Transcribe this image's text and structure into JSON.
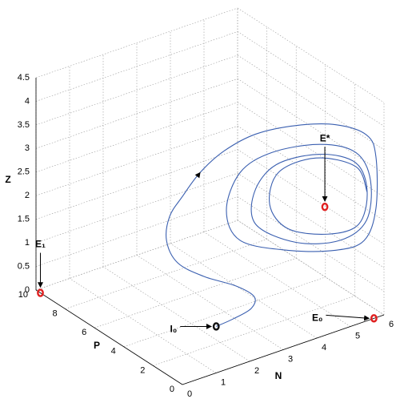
{
  "chart_data": {
    "type": "line3d",
    "xlabel": "N",
    "ylabel": "P",
    "zlabel": "Z",
    "xlim": [
      0,
      6
    ],
    "ylim": [
      0,
      10
    ],
    "zlim": [
      0,
      4.5
    ],
    "xticks": [
      0,
      1,
      2,
      3,
      4,
      5,
      6
    ],
    "yticks": [
      0,
      2,
      4,
      6,
      8,
      10
    ],
    "zticks": [
      0,
      0.5,
      1,
      1.5,
      2,
      2.5,
      3,
      3.5,
      4,
      4.5
    ],
    "grid": true,
    "series": [
      {
        "color": "#3a5fb0",
        "x": [
          2.4,
          2.74,
          3.09,
          3.01,
          2.47,
          1.51,
          0.73,
          0.4,
          0.49,
          0.87,
          1.4,
          2.11,
          2.84,
          3.82,
          4.7,
          5.61,
          5.89,
          5.89,
          5.54,
          4.7,
          3.27,
          1.85,
          1.44,
          1.85,
          2.8,
          4.23,
          5.3,
          5.73,
          5.61,
          4.82,
          3.51,
          2.32,
          2.27,
          2.92,
          4.23,
          5.3,
          5.63,
          5.37,
          4.46,
          3.27,
          2.73,
          2.99,
          4.11,
          5.3,
          5.63
        ],
        "y": [
          3.2,
          2.8,
          2.4,
          2,
          2,
          2,
          2,
          2,
          2,
          2,
          2,
          2,
          1.5,
          1,
          0.3,
          0.3,
          0.3,
          0.3,
          0.3,
          0.3,
          0.3,
          0.3,
          0.3,
          0.3,
          0.3,
          0.3,
          0.3,
          0.3,
          0.3,
          0.3,
          0.3,
          0.3,
          0.3,
          0.3,
          0.3,
          0.3,
          0.3,
          0.3,
          0.3,
          0.3,
          0.3,
          0.3,
          0.3,
          0.3,
          0.3
        ],
        "z": [
          0,
          0.16,
          0.37,
          0.72,
          1.08,
          1.52,
          2.0,
          2.55,
          3.04,
          3.37,
          3.75,
          4.03,
          4.31,
          4.35,
          4.29,
          3.85,
          3.32,
          2.22,
          1.63,
          1.63,
          1.98,
          2.54,
          3.28,
          3.98,
          4.17,
          3.99,
          3.55,
          2.85,
          2.04,
          1.81,
          2.09,
          2.76,
          3.45,
          3.88,
          3.78,
          3.33,
          2.63,
          2.01,
          2.03,
          2.44,
          3.08,
          3.7,
          3.73,
          3.25,
          2.63
        ]
      }
    ],
    "points": [
      {
        "label": "E₁",
        "x": 0,
        "y": 9.7,
        "z": 0,
        "color": "#e02020"
      },
      {
        "label": "E₀",
        "x": 5.7,
        "y": 0,
        "z": 0,
        "color": "#e02020"
      },
      {
        "label": "E*",
        "x": 4.37,
        "y": 0.3,
        "z": 2.63,
        "color": "#e02020"
      },
      {
        "label": "I₀",
        "x": 2.4,
        "y": 3.2,
        "z": 0,
        "color": "#111111"
      }
    ]
  }
}
